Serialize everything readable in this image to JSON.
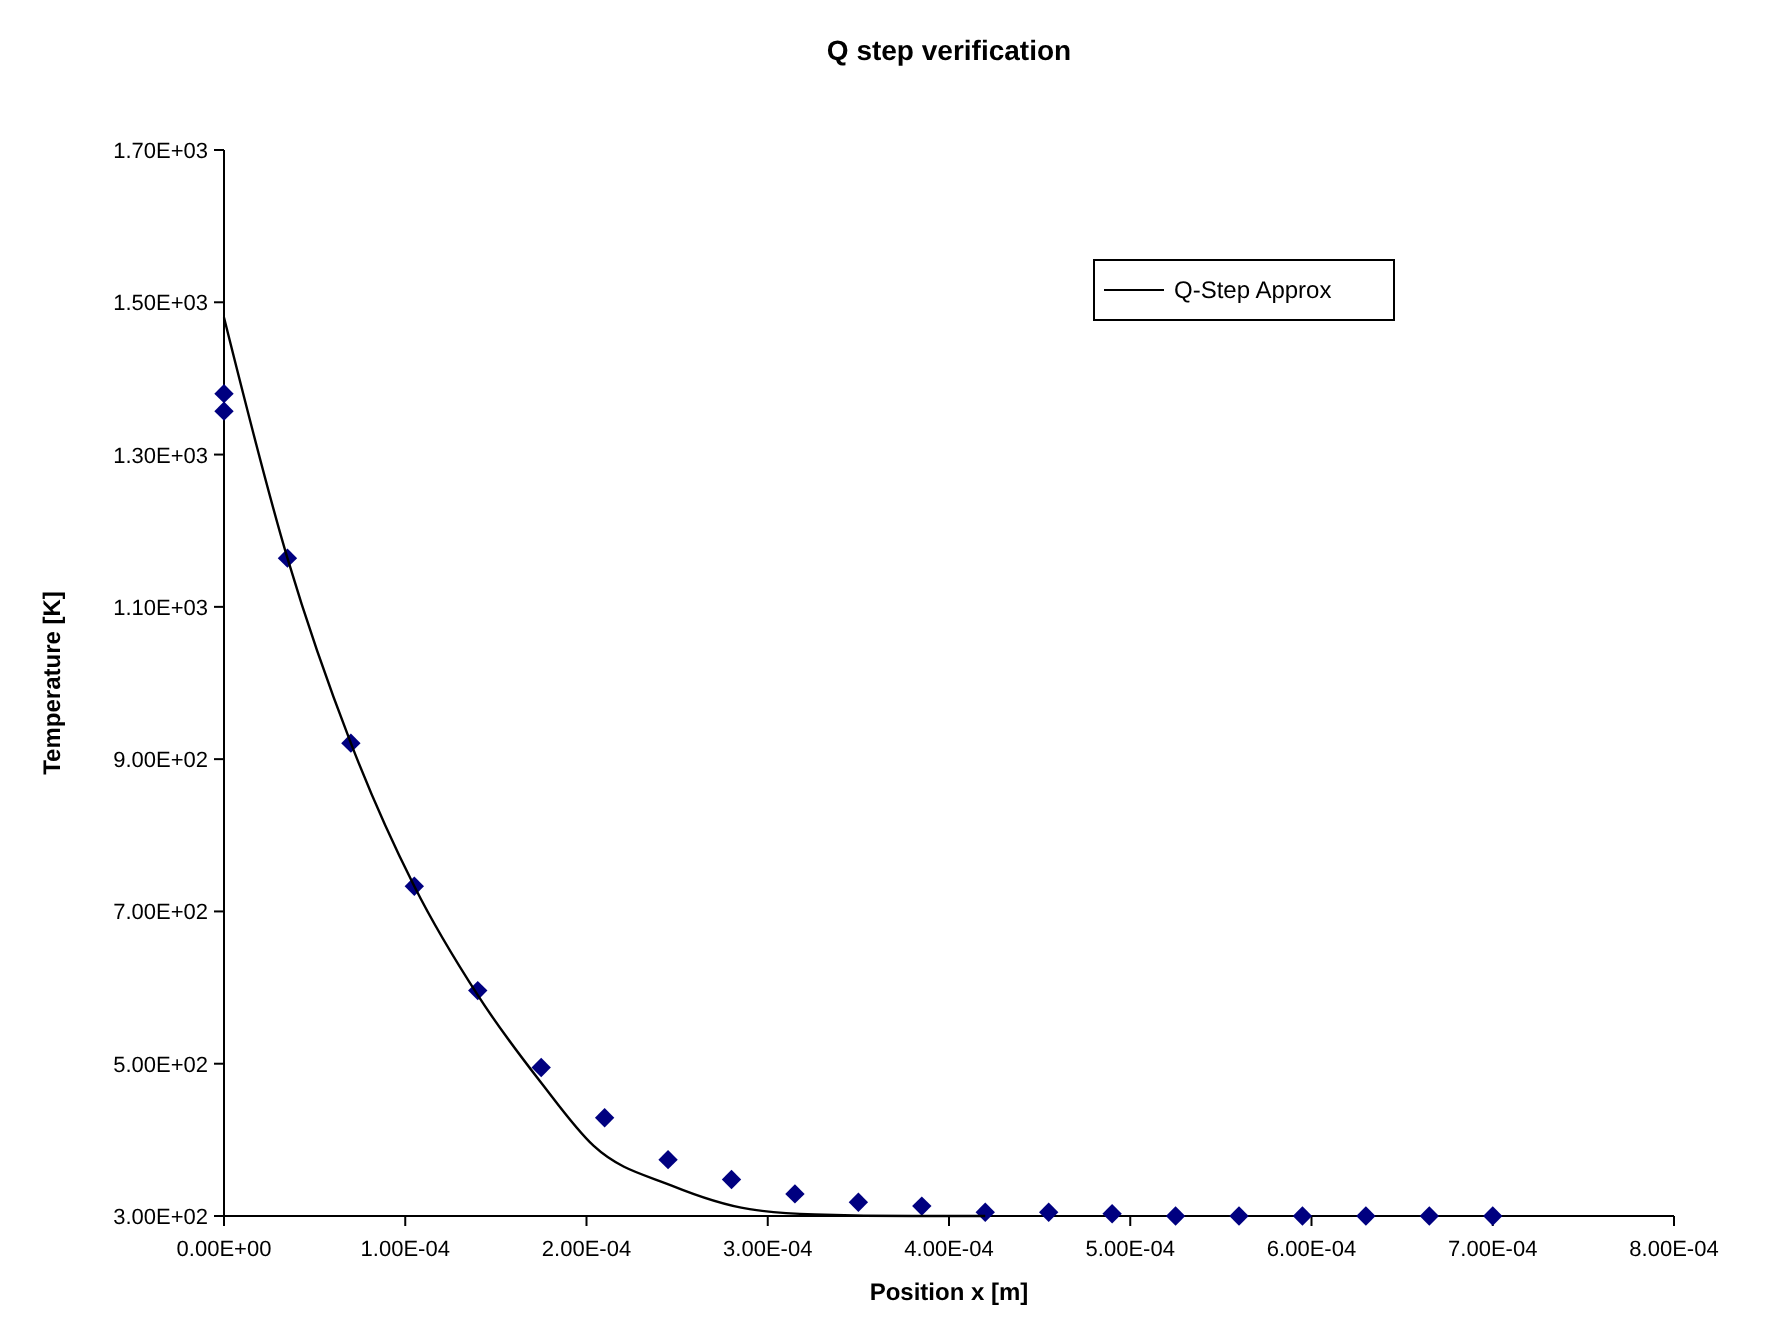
{
  "chart_data": {
    "type": "scatter",
    "title": "Q step verification",
    "xlabel": "Position x [m]",
    "ylabel": "Temperature [K]",
    "xlim": [
      0,
      0.0008
    ],
    "ylim": [
      300,
      1700
    ],
    "xticks": [
      {
        "value": 0,
        "label": "0.00E+00"
      },
      {
        "value": 0.0001,
        "label": "1.00E-04"
      },
      {
        "value": 0.0002,
        "label": "2.00E-04"
      },
      {
        "value": 0.0003,
        "label": "3.00E-04"
      },
      {
        "value": 0.0004,
        "label": "4.00E-04"
      },
      {
        "value": 0.0005,
        "label": "5.00E-04"
      },
      {
        "value": 0.0006,
        "label": "6.00E-04"
      },
      {
        "value": 0.0007,
        "label": "7.00E-04"
      },
      {
        "value": 0.0008,
        "label": "8.00E-04"
      }
    ],
    "yticks": [
      {
        "value": 300,
        "label": "3.00E+02"
      },
      {
        "value": 500,
        "label": "5.00E+02"
      },
      {
        "value": 700,
        "label": "7.00E+02"
      },
      {
        "value": 900,
        "label": "9.00E+02"
      },
      {
        "value": 1100,
        "label": "1.10E+03"
      },
      {
        "value": 1300,
        "label": "1.30E+03"
      },
      {
        "value": 1500,
        "label": "1.50E+03"
      },
      {
        "value": 1700,
        "label": "1.70E+03"
      }
    ],
    "grid": false,
    "legend": "top right",
    "series": [
      {
        "color": "#000080",
        "marker": "diamond",
        "x": [
          0,
          0,
          3.5e-05,
          7e-05,
          0.000105,
          0.00014,
          0.000175,
          0.00021,
          0.000245,
          0.00028,
          0.000315,
          0.00035,
          0.000385,
          0.00042,
          0.000455,
          0.00049,
          0.000525,
          0.00056,
          0.000595,
          0.00063,
          0.000665,
          0.0007
        ],
        "values": [
          1380,
          1357,
          1164,
          921,
          733,
          596,
          495,
          429,
          374,
          348,
          329,
          318,
          313,
          305,
          305,
          303,
          300,
          300,
          300,
          300,
          300,
          300
        ]
      },
      {
        "type": "line",
        "name": "Q-Step Approx",
        "color": "#000000",
        "marker": "none",
        "line_style": "solid",
        "x": [
          0,
          3.5e-05,
          7e-05,
          0.000105,
          0.00014,
          0.000175,
          0.000204,
          0.000247,
          0.00029,
          0.000326,
          0.00038,
          0.00042
        ],
        "values": [
          1480,
          1164,
          921,
          733,
          590,
          475,
          392,
          340,
          309,
          302,
          300,
          300
        ]
      }
    ]
  }
}
